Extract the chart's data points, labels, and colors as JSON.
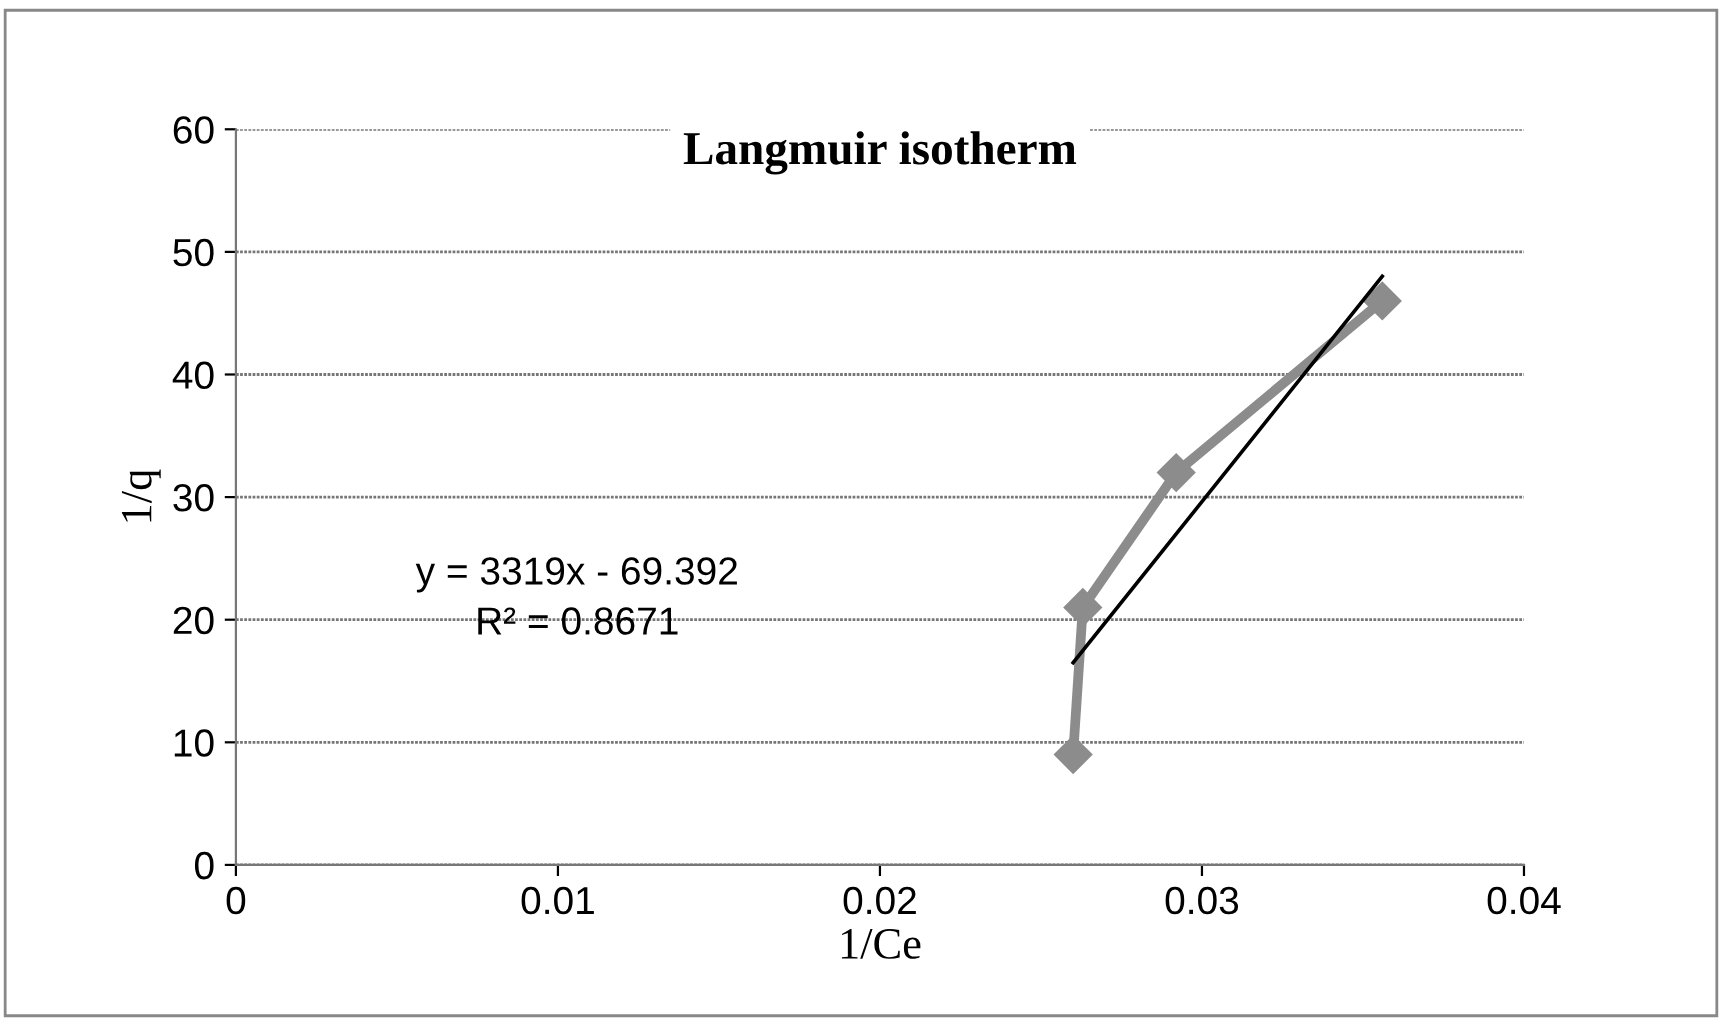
{
  "chart_data": {
    "type": "line",
    "title": "Langmuir isotherm",
    "xlabel": "1/Ce",
    "ylabel": "1/q",
    "annotations": [
      "y = 3319x - 69.392",
      "R² = 0.8671"
    ],
    "series": [
      {
        "color": "#8c8c8c",
        "marker": "diamond",
        "x": [
          0.026,
          0.0263,
          0.0292,
          0.0356
        ],
        "values": [
          9,
          21,
          32,
          46
        ]
      },
      {
        "color": "#000000",
        "marker": "none",
        "x": [
          0.026,
          0.0356
        ],
        "values": [
          16.5,
          48
        ]
      }
    ],
    "xlim": [
      0,
      0.04
    ],
    "xticks": [
      0,
      0.01,
      0.02,
      0.03,
      0.04
    ],
    "ylim": [
      0,
      60
    ],
    "yticks": [
      0,
      10,
      20,
      30,
      40,
      50,
      60
    ],
    "grid": "y",
    "legend": false
  }
}
